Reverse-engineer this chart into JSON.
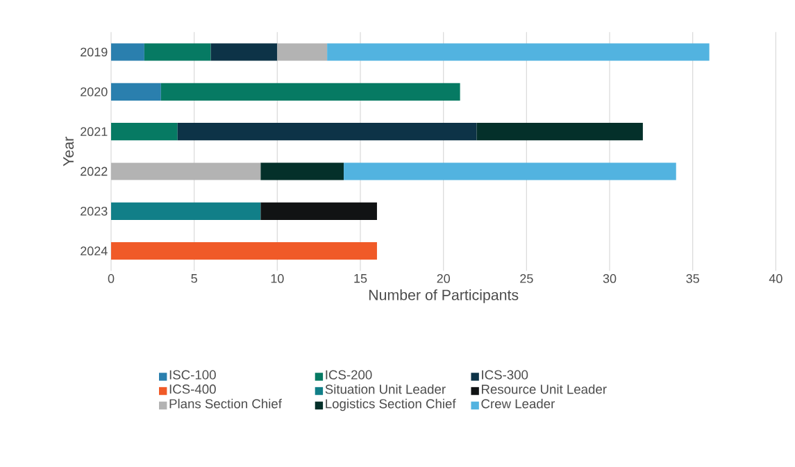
{
  "chart_data": {
    "type": "bar",
    "orientation": "horizontal",
    "stacked": true,
    "xlabel": "Number of Participants",
    "ylabel": "Year",
    "categories": [
      "2019",
      "2020",
      "2021",
      "2022",
      "2023",
      "2024"
    ],
    "xlim": [
      0,
      40
    ],
    "xticks": [
      0,
      5,
      10,
      15,
      20,
      25,
      30,
      35,
      40
    ],
    "grid": "x",
    "legend": "bottom",
    "series": [
      {
        "name": "ISC-100",
        "color": "#2a7fae",
        "values": [
          2,
          3,
          null,
          null,
          null,
          null
        ]
      },
      {
        "name": "ICS-200",
        "color": "#067a63",
        "values": [
          4,
          18,
          4,
          null,
          null,
          null
        ]
      },
      {
        "name": "ICS-300",
        "color": "#0d3347",
        "values": [
          4,
          null,
          18,
          null,
          null,
          null
        ]
      },
      {
        "name": "ICS-400",
        "color": "#f05a28",
        "values": [
          null,
          null,
          null,
          null,
          null,
          16
        ]
      },
      {
        "name": "Situation Unit Leader",
        "color": "#117f88",
        "values": [
          null,
          null,
          null,
          null,
          9,
          null
        ]
      },
      {
        "name": "Resource Unit Leader",
        "color": "#111314",
        "values": [
          null,
          null,
          null,
          null,
          7,
          null
        ]
      },
      {
        "name": "Plans Section Chief",
        "color": "#b3b3b3",
        "values": [
          3,
          null,
          null,
          9,
          null,
          null
        ]
      },
      {
        "name": "Logistics Section Chief",
        "color": "#04302a",
        "values": [
          null,
          null,
          10,
          5,
          null,
          null
        ]
      },
      {
        "name": "Crew Leader",
        "color": "#52b3e0",
        "values": [
          23,
          null,
          null,
          20,
          null,
          null
        ]
      }
    ]
  }
}
